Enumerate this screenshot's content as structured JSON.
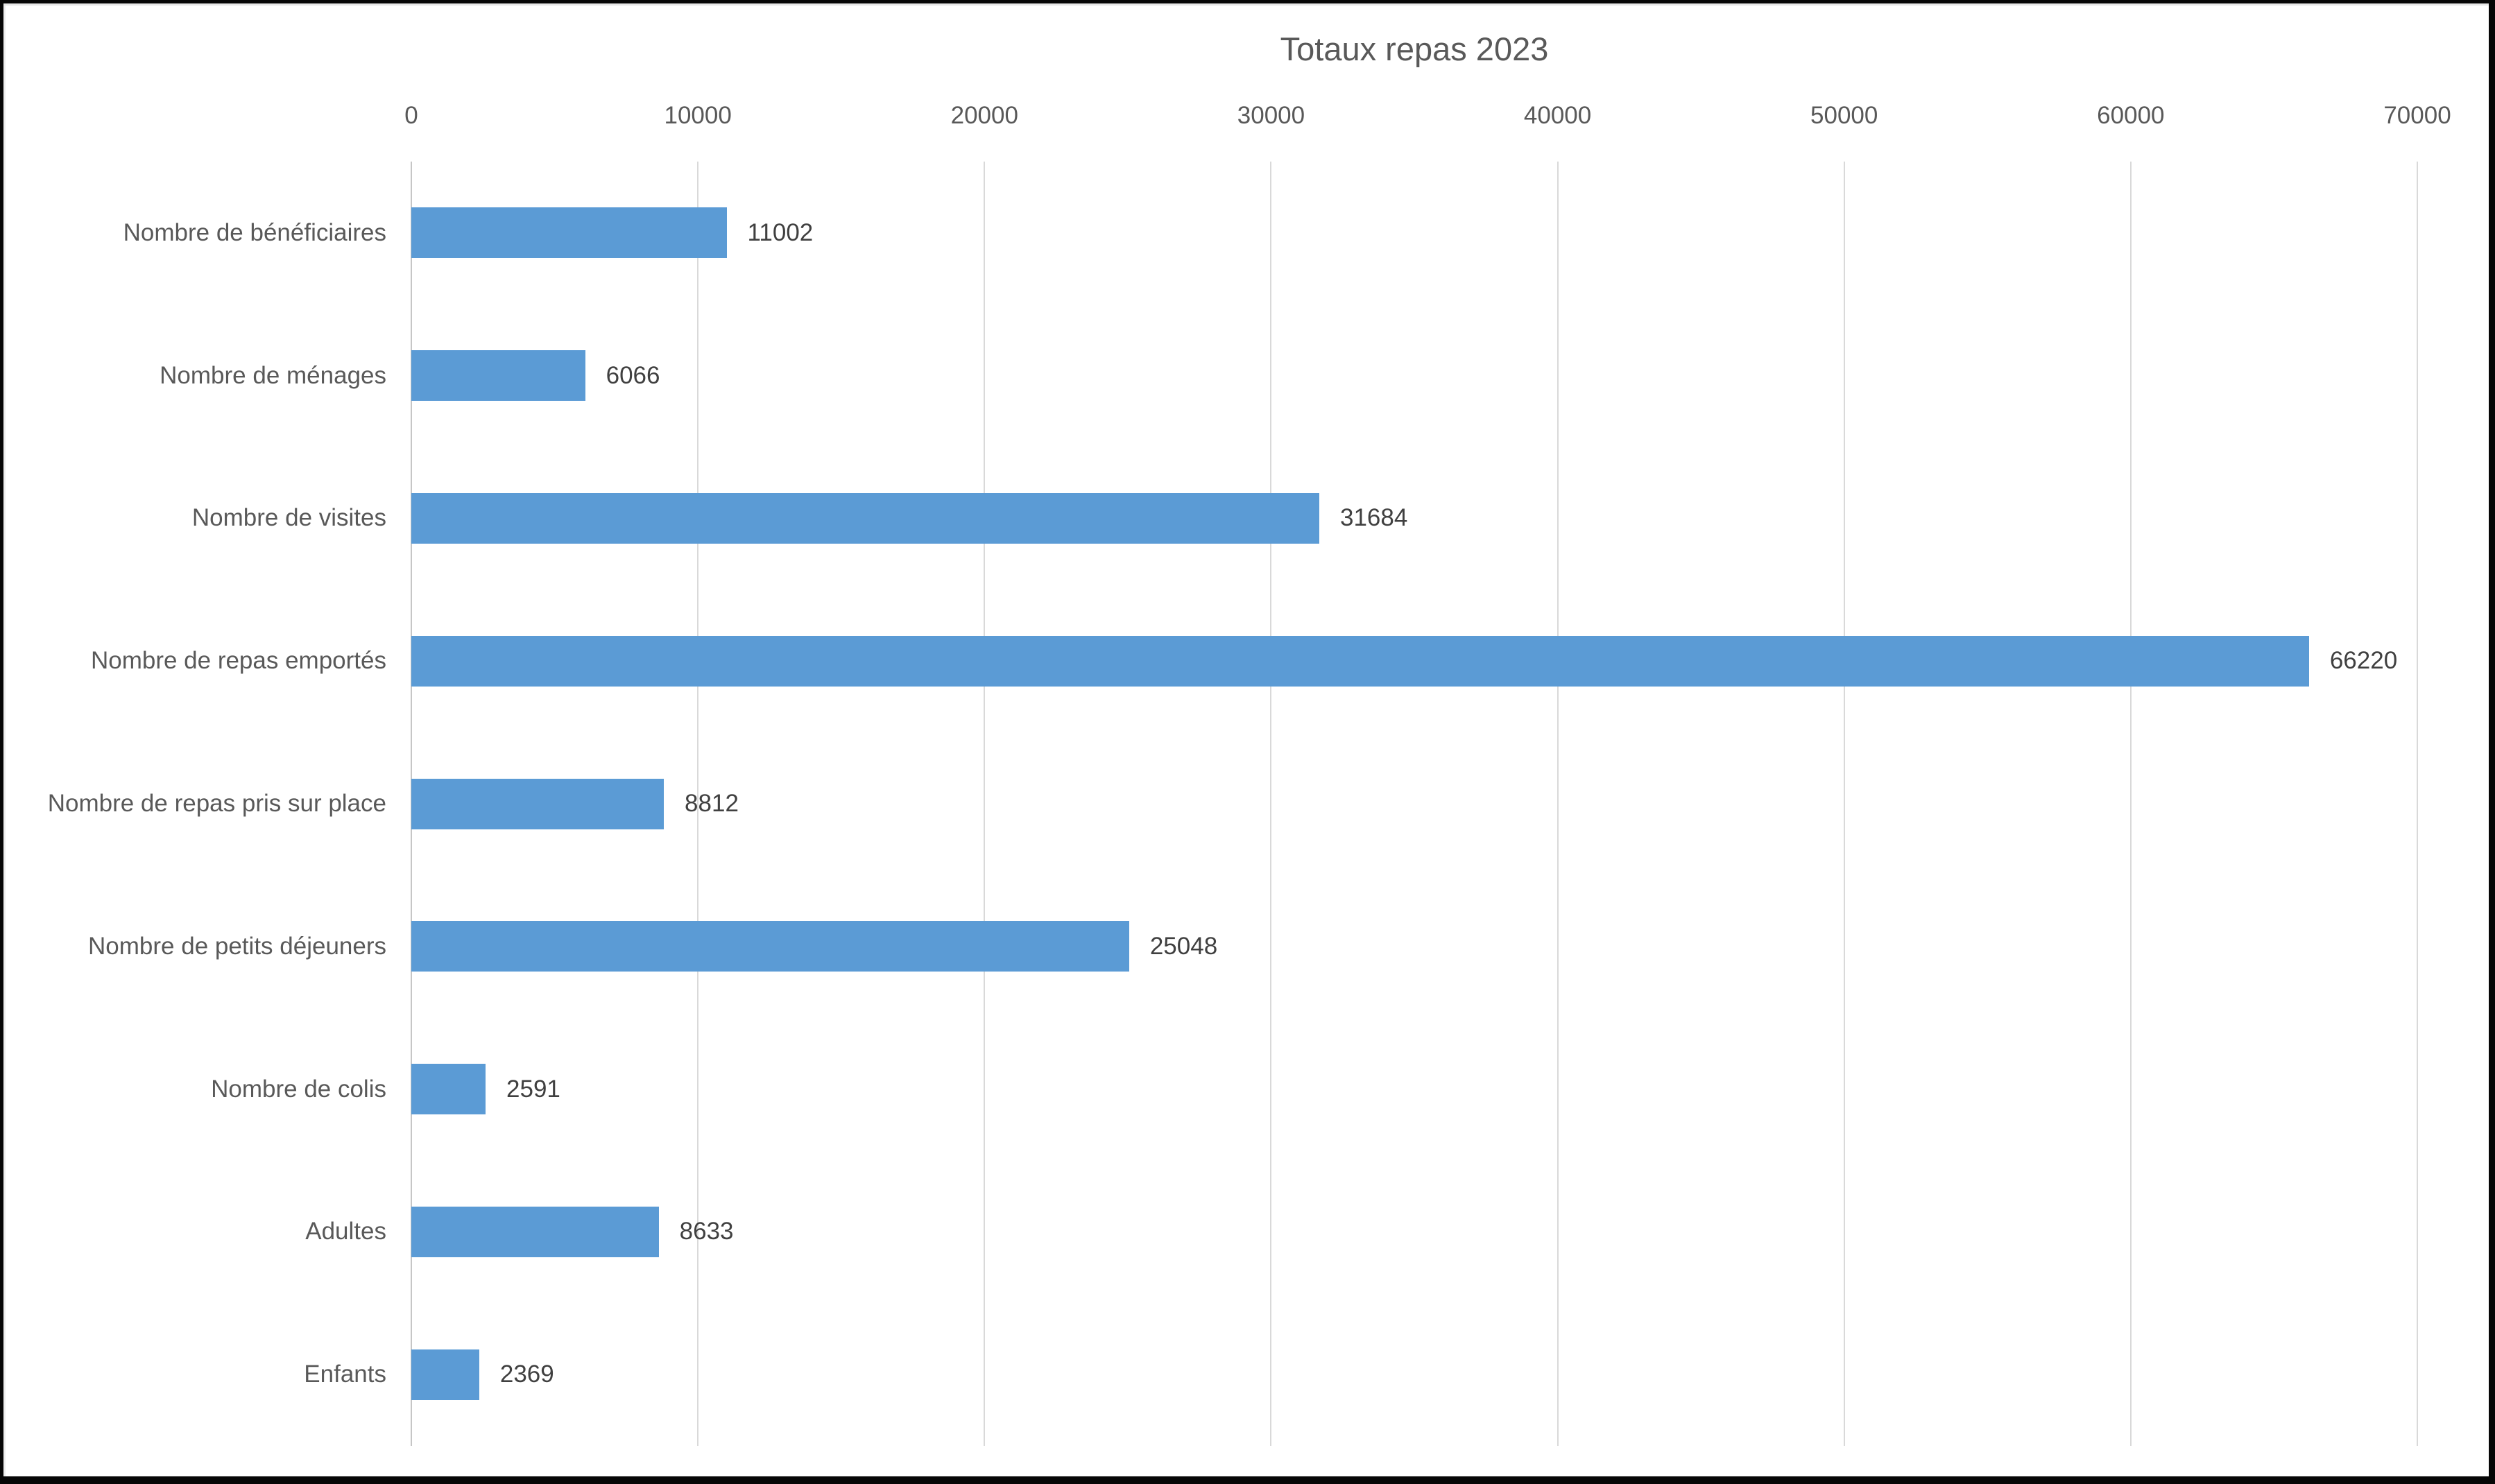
{
  "chart_data": {
    "type": "bar",
    "orientation": "horizontal",
    "title": "Totaux repas 2023",
    "categories": [
      "Nombre de bénéficiaires",
      "Nombre de ménages",
      "Nombre de visites",
      "Nombre de repas emportés",
      "Nombre de repas pris sur place",
      "Nombre de petits déjeuners",
      "Nombre de colis",
      "Adultes",
      "Enfants"
    ],
    "values": [
      11002,
      6066,
      31684,
      66220,
      8812,
      25048,
      2591,
      8633,
      2369
    ],
    "data_labels": [
      "11002",
      "6066",
      "31684",
      "66220",
      "8812",
      "25048",
      "2591",
      "8633",
      "2369"
    ],
    "xlabel": "",
    "ylabel": "",
    "xlim": [
      0,
      70000
    ],
    "xticks": [
      0,
      10000,
      20000,
      30000,
      40000,
      50000,
      60000,
      70000
    ],
    "xtick_labels": [
      "0",
      "10000",
      "20000",
      "30000",
      "40000",
      "50000",
      "60000",
      "70000"
    ],
    "grid": "vertical gridlines on, axis labels on top",
    "legend": "none",
    "colors": {
      "bar_fill": "#5b9bd5",
      "gridline": "#d9d9d9",
      "axis_text": "#595959",
      "title_text": "#595959",
      "value_text": "#404040",
      "background": "#ffffff",
      "frame_border": "#060606"
    }
  }
}
